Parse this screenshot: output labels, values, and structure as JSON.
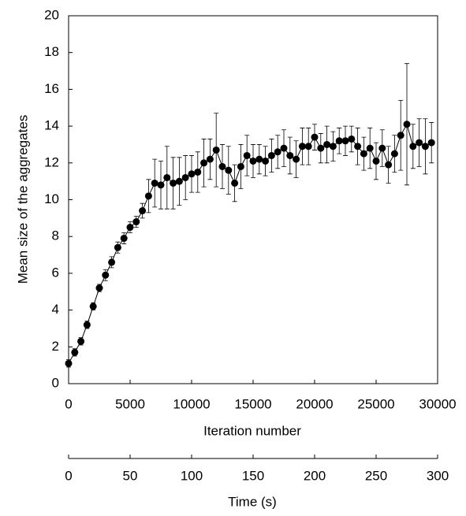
{
  "chart_data": {
    "type": "line",
    "ylabel": "Mean size of the aggregates",
    "xlabel": "Iteration number",
    "x2label": "Time (s)",
    "x": [
      0,
      500,
      1000,
      1500,
      2000,
      2500,
      3000,
      3500,
      4000,
      4500,
      5000,
      5500,
      6000,
      6500,
      7000,
      7500,
      8000,
      8500,
      9000,
      9500,
      10000,
      10500,
      11000,
      11500,
      12000,
      12500,
      13000,
      13500,
      14000,
      14500,
      15000,
      15500,
      16000,
      16500,
      17000,
      17500,
      18000,
      18500,
      19000,
      19500,
      20000,
      20500,
      21000,
      21500,
      22000,
      22500,
      23000,
      23500,
      24000,
      24500,
      25000,
      25500,
      26000,
      26500,
      27000,
      27500,
      28000,
      28500,
      29000,
      29500
    ],
    "series": [
      {
        "color": "#000000",
        "values": [
          1.1,
          1.7,
          2.3,
          3.2,
          4.2,
          5.2,
          5.9,
          6.6,
          7.4,
          7.9,
          8.5,
          8.8,
          9.4,
          10.2,
          10.9,
          10.8,
          11.2,
          10.9,
          11.0,
          11.2,
          11.4,
          11.5,
          12.0,
          12.2,
          12.7,
          11.8,
          11.6,
          10.9,
          11.8,
          12.4,
          12.1,
          12.2,
          12.1,
          12.4,
          12.6,
          12.8,
          12.4,
          12.2,
          12.9,
          12.9,
          13.4,
          12.8,
          13.0,
          12.9,
          13.2,
          13.2,
          13.3,
          12.9,
          12.5,
          12.8,
          12.1,
          12.8,
          11.9,
          12.5,
          13.5,
          14.1,
          12.9,
          13.1,
          12.9,
          13.1
        ],
        "errors": [
          0.2,
          0.2,
          0.2,
          0.2,
          0.2,
          0.2,
          0.3,
          0.3,
          0.3,
          0.3,
          0.3,
          0.3,
          0.4,
          0.9,
          1.3,
          1.3,
          1.7,
          1.4,
          1.3,
          1.2,
          1.0,
          1.1,
          1.3,
          1.1,
          2.0,
          1.2,
          1.3,
          1.0,
          1.2,
          1.1,
          0.9,
          0.8,
          0.8,
          0.9,
          0.9,
          1.0,
          1.0,
          1.0,
          1.0,
          1.0,
          0.7,
          0.8,
          1.0,
          0.8,
          0.7,
          0.8,
          0.7,
          1.0,
          0.9,
          1.1,
          1.0,
          1.0,
          1.0,
          1.0,
          1.9,
          3.3,
          1.2,
          1.3,
          1.5,
          1.1
        ]
      }
    ],
    "xlim": [
      0,
      30000
    ],
    "xticks": [
      0,
      5000,
      10000,
      15000,
      20000,
      25000,
      30000
    ],
    "x2lim": [
      0,
      300
    ],
    "x2ticks": [
      0,
      50,
      100,
      150,
      200,
      250,
      300
    ],
    "ylim": [
      0,
      20
    ],
    "yticks": [
      0,
      2,
      4,
      6,
      8,
      10,
      12,
      14,
      16,
      18,
      20
    ]
  }
}
